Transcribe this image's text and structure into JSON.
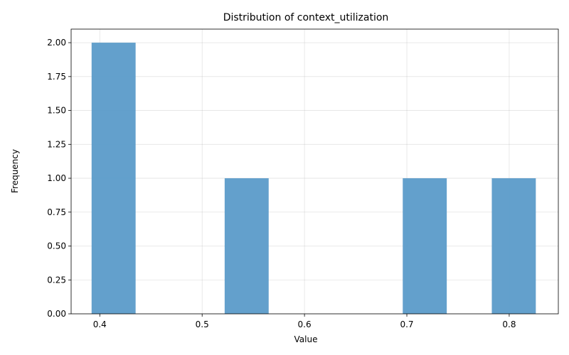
{
  "chart_data": {
    "type": "bar",
    "title": "Distribution of context_utilization",
    "xlabel": "Value",
    "ylabel": "Frequency",
    "xlim": [
      0.372,
      0.848
    ],
    "ylim": [
      0,
      2.1
    ],
    "x_ticks": [
      0.4,
      0.5,
      0.6,
      0.7,
      0.8
    ],
    "x_tick_labels": [
      "0.4",
      "0.5",
      "0.6",
      "0.7",
      "0.8"
    ],
    "y_ticks": [
      0,
      0.25,
      0.5,
      0.75,
      1.0,
      1.25,
      1.5,
      1.75,
      2.0
    ],
    "y_tick_labels": [
      "0.00",
      "0.25",
      "0.50",
      "0.75",
      "1.00",
      "1.25",
      "1.50",
      "1.75",
      "2.00"
    ],
    "bins": [
      {
        "start": 0.392,
        "end": 0.435,
        "count": 2
      },
      {
        "start": 0.522,
        "end": 0.565,
        "count": 1
      },
      {
        "start": 0.696,
        "end": 0.739,
        "count": 1
      },
      {
        "start": 0.783,
        "end": 0.826,
        "count": 1
      }
    ],
    "bar_color": "#5b9bc9",
    "grid": true
  }
}
